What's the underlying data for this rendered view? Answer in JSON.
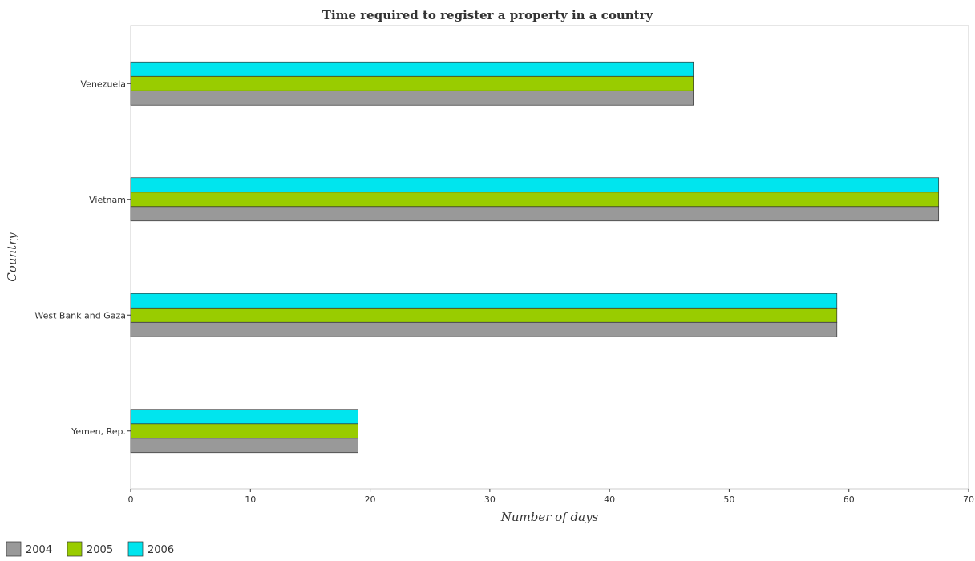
{
  "chart_data": {
    "type": "bar",
    "orientation": "horizontal",
    "title": "Time required to register a property in a country",
    "xlabel": "Number of days",
    "ylabel": "Country",
    "categories": [
      "Venezuela",
      "Vietnam",
      "West Bank and Gaza",
      "Yemen, Rep."
    ],
    "series": [
      {
        "name": "2004",
        "color": "#999999",
        "values": [
          47,
          67.5,
          59,
          19
        ]
      },
      {
        "name": "2005",
        "color": "#99cc00",
        "values": [
          47,
          67.5,
          59,
          19
        ]
      },
      {
        "name": "2006",
        "color": "#00e5ee",
        "values": [
          47,
          67.5,
          59,
          19
        ]
      }
    ],
    "xlim": [
      0,
      70
    ],
    "xticks": [
      0,
      10,
      20,
      30,
      40,
      50,
      60,
      70
    ],
    "grid": false,
    "legend_position": "bottom-left"
  }
}
